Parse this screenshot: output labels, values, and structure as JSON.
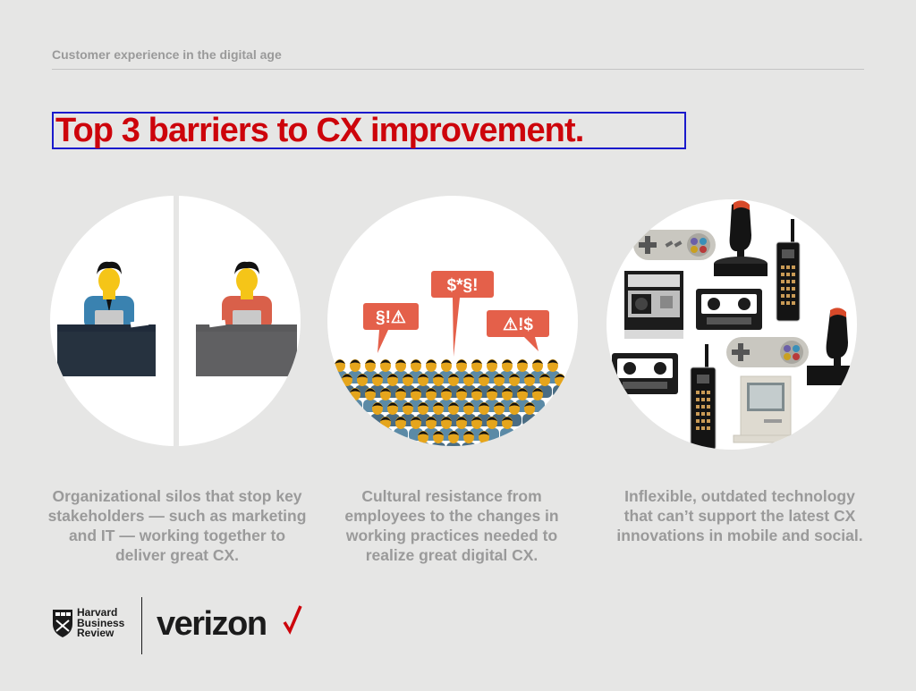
{
  "header": {
    "subtitle": "Customer experience in the digital age"
  },
  "title": "Top 3 barriers to CX improvement.",
  "barriers": [
    {
      "caption": "Organizational silos that stop key stakeholders — such as marketing and IT — working together to deliver great CX.",
      "illustration": "two-desks-icon"
    },
    {
      "caption": "Cultural resistance from employees to the changes in working practices needed to realize great digital CX.",
      "illustration": "crowd-protest-icon"
    },
    {
      "caption": "Inflexible, outdated technology that can’t support the latest CX innovations in mobile and social.",
      "illustration": "retro-technology-icon"
    }
  ],
  "speech_bubbles": [
    "§!⚠",
    "$*§!",
    "⚠!$"
  ],
  "footer": {
    "hbr_lines": [
      "Harvard",
      "Business",
      "Review"
    ],
    "verizon": "verizon"
  },
  "colors": {
    "title_red": "#cd040b",
    "caption_gray": "#9a9a9a",
    "background": "#e6e6e5",
    "bubble_orange": "#e4604a"
  }
}
